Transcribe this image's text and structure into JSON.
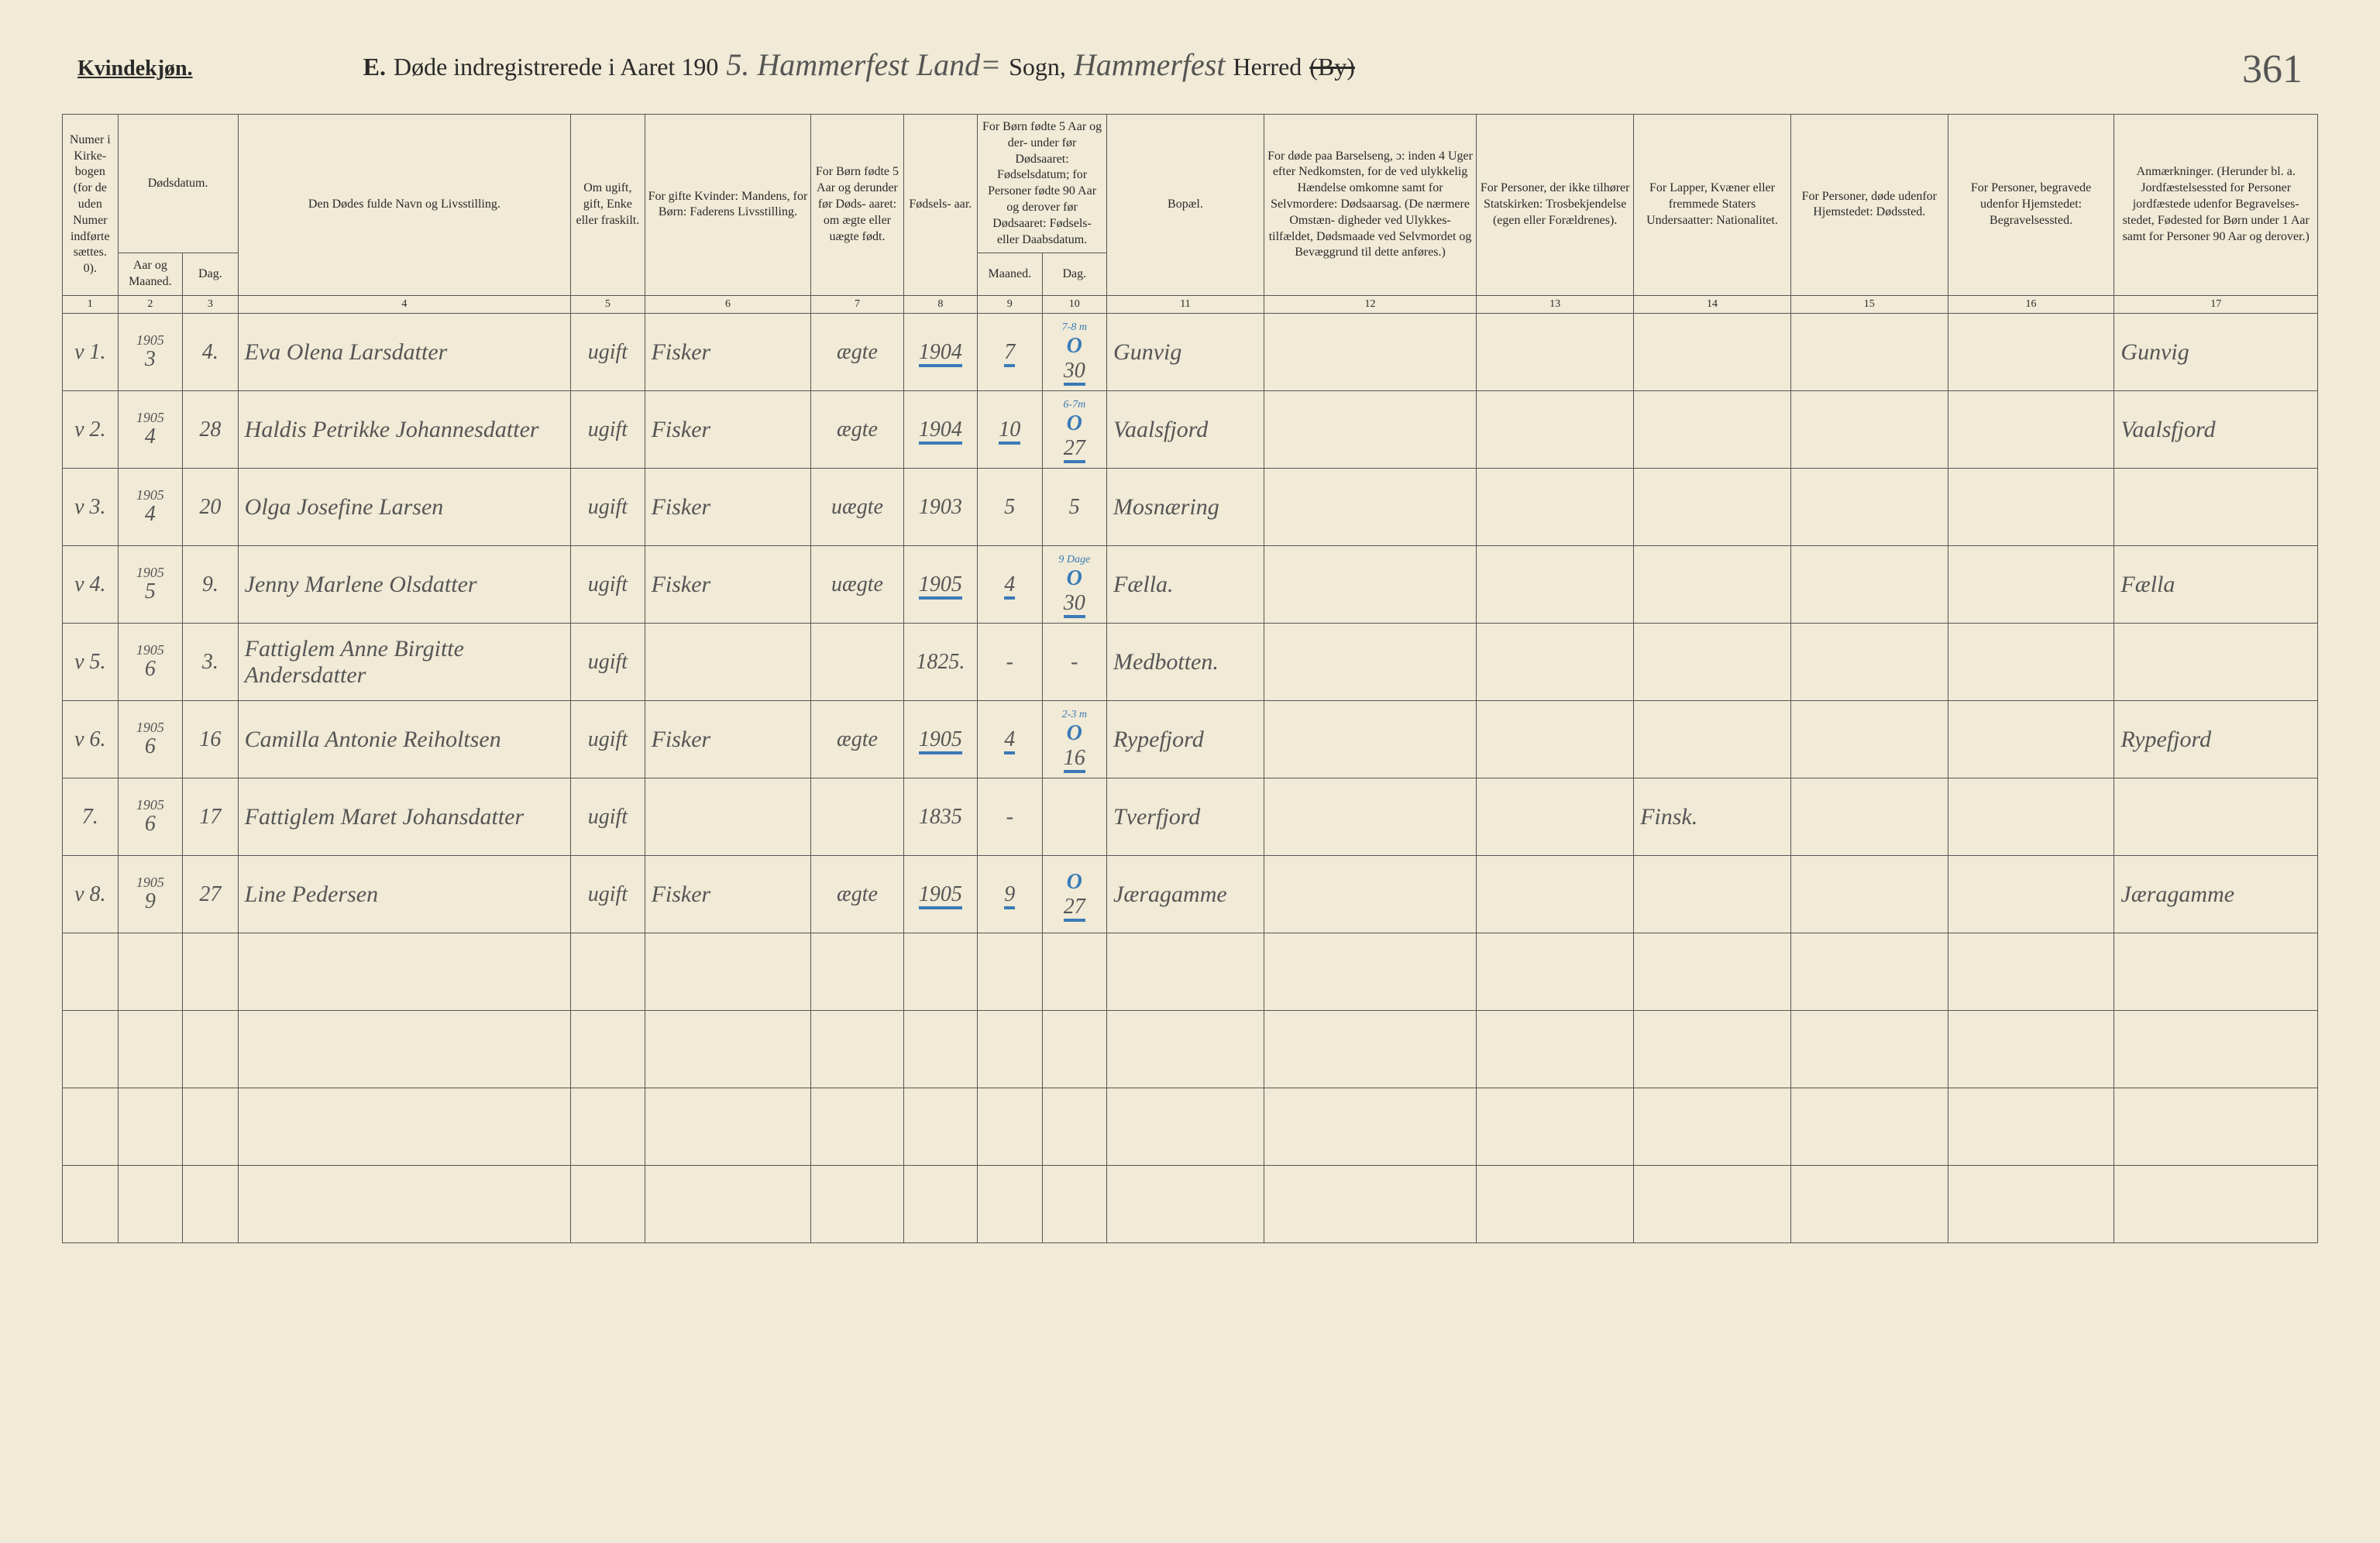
{
  "header": {
    "gender": "Kvindekjøn.",
    "title_letter": "E.",
    "title_text": "Døde indregistrerede i Aaret 190",
    "year_digit": "5.",
    "sogn_handwritten": "Hammerfest Land=",
    "sogn_label": "Sogn,",
    "herred_handwritten": "Hammerfest",
    "herred_label": "Herred",
    "by_struck": "(By)",
    "page_number": "361"
  },
  "columns": {
    "c1": "Numer i Kirke- bogen (for de uden Numer indførte sættes. 0).",
    "c2_top": "Dødsdatum.",
    "c2a": "Aar og Maaned.",
    "c2b": "Dag.",
    "c4": "Den Dødes fulde Navn og Livsstilling.",
    "c5": "Om ugift, gift, Enke eller fraskilt.",
    "c6": "For gifte Kvinder: Mandens, for Børn: Faderens Livsstilling.",
    "c7": "For Børn fødte 5 Aar og derunder før Døds- aaret: om ægte eller uægte født.",
    "c8": "Fødsels- aar.",
    "c9_top": "For Børn fødte 5 Aar og der- under før Dødsaaret: Fødselsdatum; for Personer fødte 90 Aar og derover før Dødsaaret: Fødsels- eller Daabsdatum.",
    "c9a": "Maaned.",
    "c9b": "Dag.",
    "c11": "Bopæl.",
    "c12": "For døde paa Barselseng, ɔ: inden 4 Uger efter Nedkomsten, for de ved ulykkelig Hændelse omkomne samt for Selvmordere: Dødsaarsag. (De nærmere Omstæn- digheder ved Ulykkes- tilfældet, Dødsmaade ved Selvmordet og Bevæggrund til dette anføres.)",
    "c13": "For Personer, der ikke tilhører Statskirken: Trosbekjendelse (egen eller Forældrenes).",
    "c14": "For Lapper, Kvæner eller fremmede Staters Undersaatter: Nationalitet.",
    "c15": "For Personer, døde udenfor Hjemstedet: Dødssted.",
    "c16": "For Personer, begravede udenfor Hjemstedet: Begravelsessted.",
    "c17": "Anmærkninger. (Herunder bl. a. Jordfæstelsessted for Personer jordfæstede udenfor Begravelses- stedet, Fødested for Børn under 1 Aar samt for Personer 90 Aar og derover.)"
  },
  "colnums": {
    "n1": "1",
    "n2": "2",
    "n3": "3",
    "n4": "4",
    "n5": "5",
    "n6": "6",
    "n7": "7",
    "n8": "8",
    "n9": "9",
    "n10": "10",
    "n11": "11",
    "n12": "12",
    "n13": "13",
    "n14": "14",
    "n15": "15",
    "n16": "16",
    "n17": "17"
  },
  "rows": [
    {
      "num": "v 1.",
      "year": "1905",
      "month": "3",
      "day": "4.",
      "name": "Eva Olena Larsdatter",
      "civil": "ugift",
      "father": "Fisker",
      "legit": "ægte",
      "byear": "1904",
      "bmonth": "7",
      "bday": "30",
      "age_note": "7-8 m",
      "circle": "O",
      "bopael": "Gunvig",
      "c12": "",
      "c13": "",
      "c14": "",
      "c15": "",
      "c16": "",
      "remark": "Gunvig"
    },
    {
      "num": "v 2.",
      "year": "1905",
      "month": "4",
      "day": "28",
      "name": "Haldis Petrikke Johannesdatter",
      "civil": "ugift",
      "father": "Fisker",
      "legit": "ægte",
      "byear": "1904",
      "bmonth": "10",
      "bday": "27",
      "age_note": "6-7m",
      "circle": "O",
      "bopael": "Vaalsfjord",
      "c12": "",
      "c13": "",
      "c14": "",
      "c15": "",
      "c16": "",
      "remark": "Vaalsfjord"
    },
    {
      "num": "v 3.",
      "year": "1905",
      "month": "4",
      "day": "20",
      "name": "Olga Josefine Larsen",
      "civil": "ugift",
      "father": "Fisker",
      "legit": "uægte",
      "byear": "1903",
      "bmonth": "5",
      "bday": "5",
      "age_note": "",
      "circle": "",
      "bopael": "Mosnæring",
      "c12": "",
      "c13": "",
      "c14": "",
      "c15": "",
      "c16": "",
      "remark": ""
    },
    {
      "num": "v 4.",
      "year": "1905",
      "month": "5",
      "day": "9.",
      "name": "Jenny Marlene Olsdatter",
      "civil": "ugift",
      "father": "Fisker",
      "legit": "uægte",
      "byear": "1905",
      "bmonth": "4",
      "bday": "30",
      "age_note": "9 Dage",
      "circle": "O",
      "bopael": "Fælla.",
      "c12": "",
      "c13": "",
      "c14": "",
      "c15": "",
      "c16": "",
      "remark": "Fælla"
    },
    {
      "num": "v 5.",
      "year": "1905",
      "month": "6",
      "day": "3.",
      "name": "Fattiglem Anne Birgitte Andersdatter",
      "civil": "ugift",
      "father": "",
      "legit": "",
      "byear": "1825.",
      "bmonth": "-",
      "bday": "-",
      "age_note": "",
      "circle": "",
      "bopael": "Medbotten.",
      "c12": "",
      "c13": "",
      "c14": "",
      "c15": "",
      "c16": "",
      "remark": ""
    },
    {
      "num": "v 6.",
      "year": "1905",
      "month": "6",
      "day": "16",
      "name": "Camilla Antonie Reiholtsen",
      "civil": "ugift",
      "father": "Fisker",
      "legit": "ægte",
      "byear": "1905",
      "bmonth": "4",
      "bday": "16",
      "age_note": "2-3 m",
      "circle": "O",
      "bopael": "Rypefjord",
      "c12": "",
      "c13": "",
      "c14": "",
      "c15": "",
      "c16": "",
      "remark": "Rypefjord"
    },
    {
      "num": "7.",
      "year": "1905",
      "month": "6",
      "day": "17",
      "name": "Fattiglem Maret Johansdatter",
      "civil": "ugift",
      "father": "",
      "legit": "",
      "byear": "1835",
      "bmonth": "-",
      "bday": "",
      "age_note": "",
      "circle": "",
      "bopael": "Tverfjord",
      "c12": "",
      "c13": "",
      "c14": "Finsk.",
      "c15": "",
      "c16": "",
      "remark": ""
    },
    {
      "num": "v 8.",
      "year": "1905",
      "month": "9",
      "day": "27",
      "name": "Line Pedersen",
      "civil": "ugift",
      "father": "Fisker",
      "legit": "ægte",
      "byear": "1905",
      "bmonth": "9",
      "bday": "27",
      "age_note": "",
      "circle": "O",
      "bopael": "Jæragamme",
      "c12": "",
      "c13": "",
      "c14": "",
      "c15": "",
      "c16": "",
      "remark": "Jæragamme"
    }
  ]
}
